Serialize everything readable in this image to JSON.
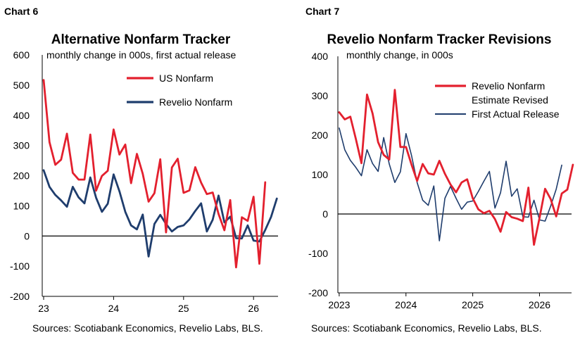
{
  "colors": {
    "red": "#e3202e",
    "navy": "#1f3d6d",
    "axis": "#000000",
    "grid": "#ffffff"
  },
  "chart_data": [
    {
      "type": "line",
      "label": "Chart 6",
      "title": "Alternative Nonfarm Tracker",
      "subtitle": "monthly change in 000s, first actual release",
      "source": "Sources: Scotiabank Economics, Revelio Labs, BLS.",
      "ylim": [
        -200,
        600
      ],
      "yticks": [
        -200,
        -100,
        0,
        100,
        200,
        300,
        400,
        500,
        600
      ],
      "xticks": [
        {
          "label": "23",
          "value": 2023.0
        },
        {
          "label": "24",
          "value": 2024.0
        },
        {
          "label": "25",
          "value": 2025.0
        },
        {
          "label": "26",
          "value": 2026.0
        }
      ],
      "xlim": [
        2022.98,
        2026.35
      ],
      "legend_position": "top-center",
      "series": [
        {
          "name": "US Nonfarm",
          "color": "#e3202e",
          "x_start": 2023.0,
          "x_step_months": 1,
          "values": [
            517,
            311,
            236,
            253,
            339,
            209,
            187,
            187,
            336,
            150,
            199,
            216,
            353,
            270,
            303,
            175,
            272,
            206,
            114,
            142,
            254,
            12,
            227,
            256,
            143,
            151,
            228,
            177,
            139,
            144,
            73,
            19,
            119,
            -104,
            62,
            50,
            130,
            -92,
            178
          ]
        },
        {
          "name": "Revelio Nonfarm",
          "color": "#1f3d6d",
          "x_start": 2023.0,
          "x_step_months": 1,
          "values": [
            218,
            163,
            136,
            118,
            97,
            163,
            128,
            108,
            194,
            127,
            80,
            107,
            204,
            148,
            80,
            35,
            22,
            71,
            -68,
            40,
            70,
            40,
            15,
            30,
            35,
            55,
            83,
            108,
            15,
            54,
            134,
            45,
            64,
            -7,
            -8,
            35,
            -15,
            -18,
            20,
            63,
            124
          ]
        }
      ]
    },
    {
      "type": "line",
      "label": "Chart 7",
      "title": "Revelio Nonfarm Tracker Revisions",
      "subtitle": "monthly change, in 000s",
      "source": "Sources: Scotiabank Economics, Revelio Labs, BLS.",
      "ylim": [
        -200,
        400
      ],
      "yticks": [
        -200,
        -100,
        0,
        100,
        200,
        300,
        400
      ],
      "xticks": [
        {
          "label": "2023",
          "value": 2023.0
        },
        {
          "label": "2024",
          "value": 2024.0
        },
        {
          "label": "2025",
          "value": 2025.0
        },
        {
          "label": "2026",
          "value": 2026.0
        }
      ],
      "xlim": [
        2022.98,
        2026.48
      ],
      "legend_position": "top-right",
      "series": [
        {
          "name": "Revelio Nonfarm Estimate Revised",
          "legend_lines": [
            "Revelio Nonfarm",
            "Estimate Revised"
          ],
          "color": "#e3202e",
          "x_start": 2023.0,
          "x_step_months": 1,
          "values": [
            258,
            240,
            247,
            190,
            129,
            303,
            255,
            182,
            150,
            138,
            315,
            170,
            170,
            125,
            84,
            127,
            103,
            100,
            135,
            102,
            75,
            55,
            80,
            88,
            40,
            12,
            2,
            8,
            -13,
            -45,
            5,
            -8,
            -12,
            -18,
            67,
            -78,
            -10,
            64,
            38,
            -6,
            52,
            62,
            125
          ]
        },
        {
          "name": "First Actual Release",
          "legend_lines": [
            "First Actual Release"
          ],
          "color": "#1f3d6d",
          "x_start": 2023.0,
          "x_step_months": 1,
          "values": [
            218,
            163,
            136,
            118,
            97,
            163,
            128,
            108,
            194,
            127,
            80,
            107,
            204,
            148,
            80,
            35,
            22,
            71,
            -68,
            40,
            70,
            40,
            12,
            30,
            33,
            57,
            83,
            108,
            15,
            54,
            134,
            45,
            64,
            -7,
            -8,
            35,
            -15,
            -18,
            20,
            63,
            124
          ]
        }
      ]
    }
  ]
}
